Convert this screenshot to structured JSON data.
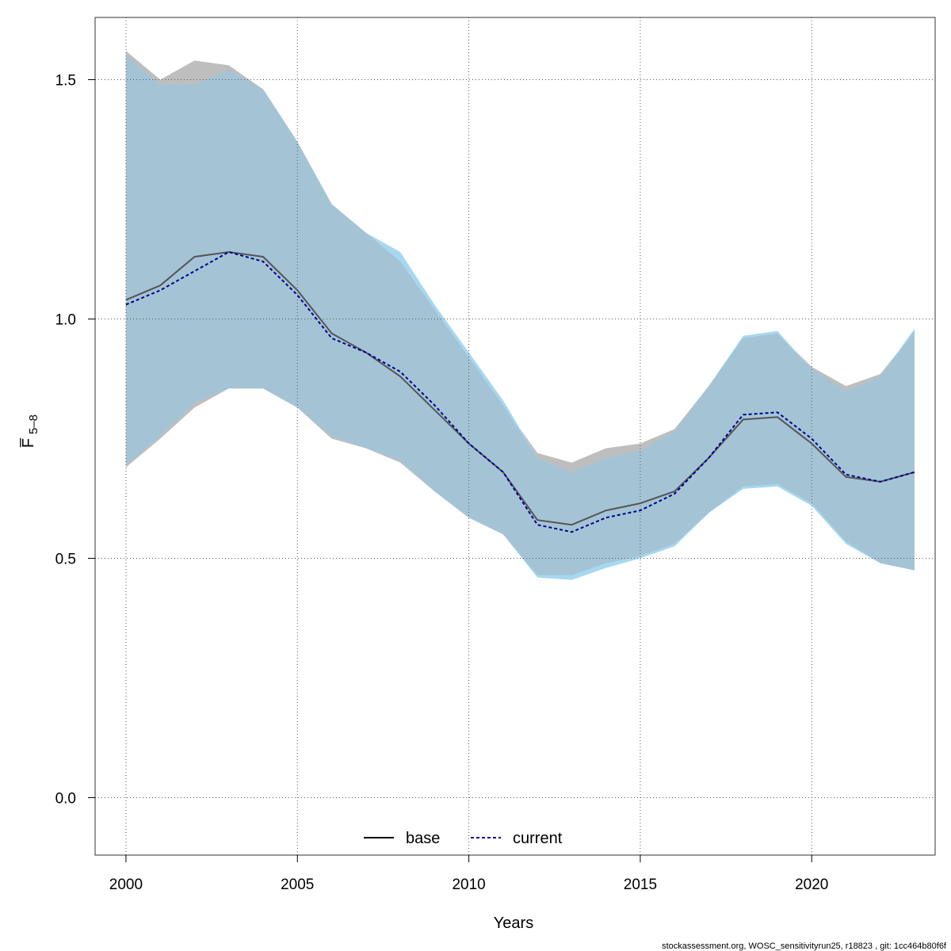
{
  "chart_data": {
    "type": "area",
    "title": "",
    "xlabel": "Years",
    "ylabel": "F̅",
    "ylabel_subscript": "5–8",
    "xlim": [
      1999.1,
      2023.6
    ],
    "ylim": [
      -0.12,
      1.63
    ],
    "x_ticks": [
      2000,
      2005,
      2010,
      2015,
      2020
    ],
    "x_tick_labels": [
      "2000",
      "2005",
      "2010",
      "2015",
      "2020"
    ],
    "y_ticks": [
      0.0,
      0.5,
      1.0,
      1.5
    ],
    "y_tick_labels": [
      "0.0",
      "0.5",
      "1.0",
      "1.5"
    ],
    "grid": true,
    "legend_position": "bottom",
    "x": [
      2000,
      2001,
      2002,
      2003,
      2004,
      2005,
      2006,
      2007,
      2008,
      2009,
      2010,
      2011,
      2012,
      2013,
      2014,
      2015,
      2016,
      2017,
      2018,
      2019,
      2020,
      2021,
      2022,
      2023
    ],
    "series": [
      {
        "name": "base",
        "line_style": "solid",
        "line_color": "#555555",
        "band_color": "#bebebe",
        "values": [
          1.04,
          1.07,
          1.13,
          1.14,
          1.13,
          1.06,
          0.97,
          0.93,
          0.88,
          0.81,
          0.74,
          0.68,
          0.58,
          0.57,
          0.6,
          0.615,
          0.64,
          0.71,
          0.79,
          0.795,
          0.74,
          0.67,
          0.66,
          0.68
        ],
        "upper": [
          1.56,
          1.5,
          1.54,
          1.53,
          1.48,
          1.37,
          1.24,
          1.18,
          1.12,
          1.02,
          0.92,
          0.82,
          0.72,
          0.7,
          0.73,
          0.74,
          0.77,
          0.86,
          0.96,
          0.97,
          0.9,
          0.86,
          0.885,
          0.975
        ],
        "lower": [
          0.69,
          0.75,
          0.815,
          0.855,
          0.855,
          0.815,
          0.75,
          0.73,
          0.7,
          0.64,
          0.585,
          0.55,
          0.465,
          0.465,
          0.49,
          0.505,
          0.53,
          0.595,
          0.65,
          0.655,
          0.615,
          0.535,
          0.49,
          0.475
        ]
      },
      {
        "name": "current",
        "line_style": "dashed",
        "line_color": "#00008b",
        "band_color": "#a6d8f0",
        "values": [
          1.03,
          1.06,
          1.1,
          1.14,
          1.12,
          1.05,
          0.96,
          0.93,
          0.89,
          0.82,
          0.74,
          0.68,
          0.57,
          0.555,
          0.585,
          0.6,
          0.635,
          0.71,
          0.8,
          0.805,
          0.75,
          0.675,
          0.66,
          0.68
        ],
        "upper": [
          1.55,
          1.49,
          1.49,
          1.52,
          1.48,
          1.37,
          1.24,
          1.18,
          1.14,
          1.03,
          0.93,
          0.83,
          0.71,
          0.68,
          0.71,
          0.725,
          0.765,
          0.86,
          0.965,
          0.975,
          0.895,
          0.85,
          0.88,
          0.98
        ],
        "lower": [
          0.695,
          0.755,
          0.825,
          0.855,
          0.855,
          0.815,
          0.755,
          0.73,
          0.705,
          0.64,
          0.585,
          0.55,
          0.46,
          0.455,
          0.48,
          0.5,
          0.525,
          0.595,
          0.645,
          0.65,
          0.61,
          0.53,
          0.49,
          0.475
        ]
      }
    ]
  },
  "footer": {
    "note": "stockassessment.org, WOSC_sensitivityrun25, r18823 , git: 1cc464b80f6f"
  },
  "colors": {
    "overlap_fill": "#a4c4d6",
    "grid": "#555555",
    "axis": "#333333"
  }
}
